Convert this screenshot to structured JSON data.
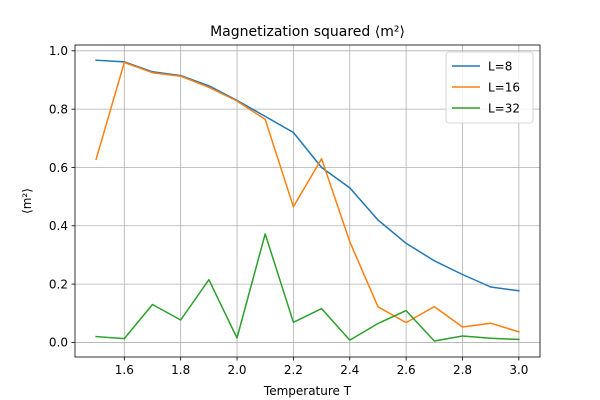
{
  "chart_data": {
    "type": "line",
    "title": "Magnetization squared ⟨m²⟩",
    "xlabel": "Temperature T",
    "ylabel": "⟨m²⟩",
    "xlim": [
      1.425,
      3.075
    ],
    "ylim": [
      -0.05,
      1.02
    ],
    "xticks": [
      1.6,
      1.8,
      2.0,
      2.2,
      2.4,
      2.6,
      2.8,
      3.0
    ],
    "xtick_labels": [
      "1.6",
      "1.8",
      "2.0",
      "2.2",
      "2.4",
      "2.6",
      "2.8",
      "3.0"
    ],
    "yticks": [
      0.0,
      0.2,
      0.4,
      0.6,
      0.8,
      1.0
    ],
    "ytick_labels": [
      "0.0",
      "0.2",
      "0.4",
      "0.6",
      "0.8",
      "1.0"
    ],
    "grid": true,
    "legend_position": "top-right",
    "x": [
      1.5,
      1.6,
      1.7,
      1.8,
      1.9,
      2.0,
      2.1,
      2.2,
      2.3,
      2.4,
      2.5,
      2.6,
      2.7,
      2.8,
      2.9,
      3.0
    ],
    "series": [
      {
        "name": "L=8",
        "color": "#1f77b4",
        "values": [
          0.968,
          0.962,
          0.928,
          0.915,
          0.88,
          0.83,
          0.775,
          0.72,
          0.6,
          0.53,
          0.42,
          0.34,
          0.28,
          0.233,
          0.19,
          0.177
        ]
      },
      {
        "name": "L=16",
        "color": "#ff7f0e",
        "values": [
          0.628,
          0.96,
          0.925,
          0.913,
          0.875,
          0.828,
          0.765,
          0.465,
          0.63,
          0.345,
          0.122,
          0.068,
          0.123,
          0.053,
          0.066,
          0.036
        ]
      },
      {
        "name": "L=32",
        "color": "#2ca02c",
        "values": [
          0.02,
          0.013,
          0.13,
          0.077,
          0.215,
          0.015,
          0.372,
          0.069,
          0.116,
          0.008,
          0.065,
          0.109,
          0.005,
          0.022,
          0.014,
          0.01
        ]
      }
    ]
  }
}
